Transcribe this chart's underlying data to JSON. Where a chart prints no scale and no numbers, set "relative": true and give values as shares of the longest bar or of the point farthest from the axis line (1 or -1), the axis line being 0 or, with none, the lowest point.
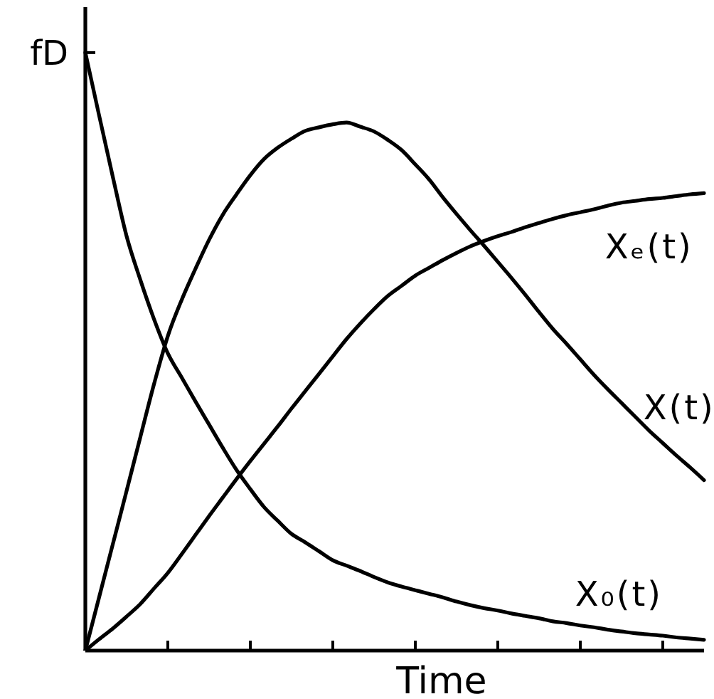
{
  "chart_data": {
    "type": "line",
    "relative": true,
    "xlabel": "Time",
    "annotations": [
      "fD"
    ],
    "categories": [
      null,
      null,
      null,
      null,
      null,
      null,
      null,
      null,
      null,
      null,
      null,
      null,
      null,
      null,
      null,
      null,
      null,
      null,
      null,
      null,
      null,
      null,
      null,
      null,
      null,
      null,
      null,
      null,
      null,
      null,
      null,
      null,
      null,
      null,
      null,
      null,
      null,
      null,
      null,
      null,
      null,
      null,
      null,
      null,
      null,
      null
    ],
    "series": [
      {
        "name": "X₀(t)",
        "color": "#000000",
        "values": [
          1.0,
          0.895,
          0.792,
          0.693,
          0.62,
          0.554,
          0.497,
          0.457,
          0.417,
          0.378,
          0.339,
          0.302,
          0.27,
          0.24,
          0.217,
          0.195,
          0.181,
          0.166,
          0.151,
          0.142,
          0.133,
          0.123,
          0.114,
          0.107,
          0.101,
          0.095,
          0.089,
          0.082,
          0.076,
          0.071,
          0.067,
          0.062,
          0.058,
          0.054,
          0.049,
          0.046,
          0.042,
          0.039,
          0.035,
          0.032,
          0.029,
          0.027,
          0.025,
          0.022,
          0.02,
          0.018
        ]
      },
      {
        "name": "X(t)",
        "color": "#000000",
        "values": [
          0,
          0.089,
          0.178,
          0.267,
          0.357,
          0.446,
          0.526,
          0.586,
          0.638,
          0.687,
          0.729,
          0.763,
          0.795,
          0.822,
          0.841,
          0.856,
          0.869,
          0.875,
          0.88,
          0.883,
          0.876,
          0.868,
          0.854,
          0.837,
          0.813,
          0.788,
          0.758,
          0.73,
          0.703,
          0.677,
          0.65,
          0.623,
          0.595,
          0.566,
          0.538,
          0.513,
          0.487,
          0.461,
          0.437,
          0.414,
          0.391,
          0.368,
          0.347,
          0.326,
          0.306,
          0.285
        ]
      },
      {
        "name": "Xₑ(t)",
        "color": "#000000",
        "values": [
          0,
          0.019,
          0.037,
          0.057,
          0.078,
          0.104,
          0.13,
          0.161,
          0.193,
          0.225,
          0.256,
          0.287,
          0.317,
          0.346,
          0.375,
          0.405,
          0.434,
          0.463,
          0.492,
          0.521,
          0.547,
          0.571,
          0.593,
          0.61,
          0.627,
          0.64,
          0.653,
          0.665,
          0.676,
          0.685,
          0.693,
          0.7,
          0.708,
          0.715,
          0.722,
          0.728,
          0.733,
          0.738,
          0.744,
          0.749,
          0.752,
          0.755,
          0.757,
          0.76,
          0.763,
          0.765
        ]
      }
    ]
  }
}
